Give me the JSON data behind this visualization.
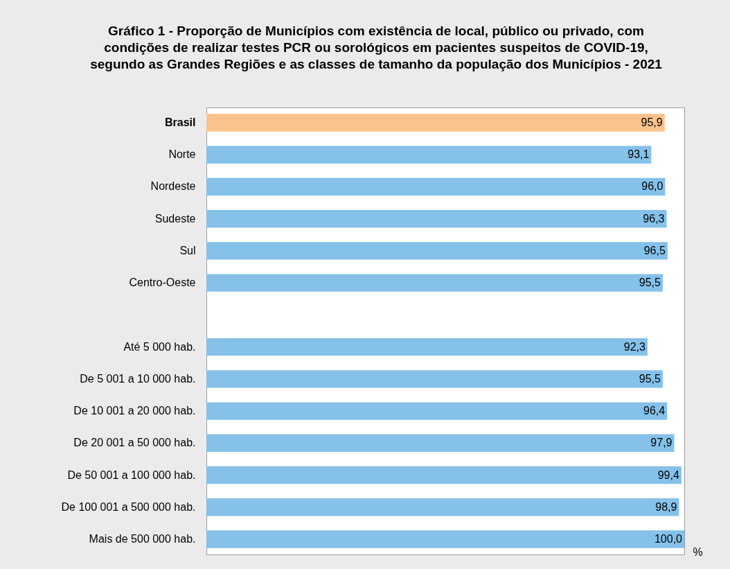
{
  "chart_data": {
    "type": "bar",
    "orientation": "horizontal",
    "title": "Gráfico 1 - Proporção de Municípios com existência de local, público ou privado, com\ncondições de realizar testes PCR ou sorológicos em pacientes suspeitos de COVID-19,\nsegundo as Grandes Regiões e as classes de tamanho da população dos Municípios - 2021",
    "xlabel": "%",
    "categories": [
      "Brasil",
      "Norte",
      "Nordeste",
      "Sudeste",
      "Sul",
      "Centro-Oeste",
      null,
      "Até 5 000 hab.",
      "De 5 001 a 10 000 hab.",
      "De 10 001 a 20 000 hab.",
      "De 20 001 a 50 000 hab.",
      "De 50 001 a 100 000 hab.",
      "De 100 001 a 500 000 hab.",
      "Mais de 500 000 hab."
    ],
    "values": [
      95.9,
      93.1,
      96.0,
      96.3,
      96.5,
      95.5,
      null,
      92.3,
      95.5,
      96.4,
      97.9,
      99.4,
      98.9,
      100.0
    ],
    "value_labels": [
      "95,9",
      "93,1",
      "96,0",
      "96,3",
      "96,5",
      "95,5",
      null,
      "92,3",
      "95,5",
      "96,4",
      "97,9",
      "99,4",
      "98,9",
      "100,0"
    ],
    "colors": [
      "#fac28c",
      "#85c1e9",
      "#85c1e9",
      "#85c1e9",
      "#85c1e9",
      "#85c1e9",
      null,
      "#85c1e9",
      "#85c1e9",
      "#85c1e9",
      "#85c1e9",
      "#85c1e9",
      "#85c1e9",
      "#85c1e9"
    ],
    "grid": false
  }
}
